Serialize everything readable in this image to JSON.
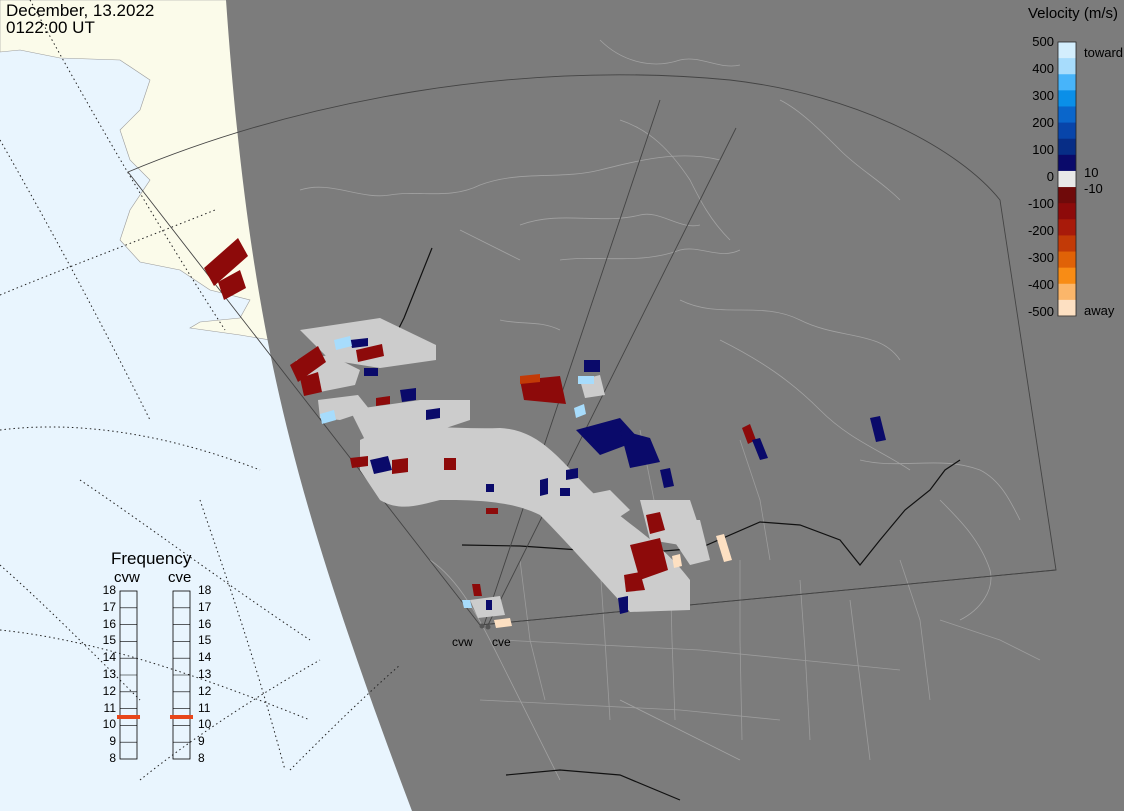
{
  "header": {
    "date": "December, 13.2022",
    "time": "0122:00 UT"
  },
  "colorbar": {
    "title": "Velocity (m/s)",
    "ticks": [
      "500",
      "400",
      "300",
      "200",
      "100",
      "0",
      "-100",
      "-200",
      "-300",
      "-400",
      "-500"
    ],
    "side_labels": {
      "toward": "toward",
      "away": "away",
      "pos_threshold": "10",
      "neg_threshold": "-10"
    },
    "colors": [
      "#d3eefd",
      "#a7dcfc",
      "#47b4fa",
      "#0a8fe8",
      "#0a66cb",
      "#0845aa",
      "#072d86",
      "#0a0a6a",
      "#e8e8e8",
      "#6f0a0a",
      "#8d0a0a",
      "#a81a0a",
      "#c23a07",
      "#e06207",
      "#f88c15",
      "#fbb66a",
      "#fde0c2"
    ]
  },
  "frequency": {
    "title": "Frequency",
    "radars": [
      {
        "name": "cvw",
        "value_mhz": 10.5
      },
      {
        "name": "cve",
        "value_mhz": 10.5
      }
    ],
    "scale": [
      "18",
      "17",
      "16",
      "15",
      "14",
      "13",
      "12",
      "11",
      "10",
      "9",
      "8"
    ],
    "marker_color": "#e8461a"
  },
  "radar_labels": {
    "cvw": "cvw",
    "cve": "cve"
  },
  "map_colors": {
    "ocean": "#e9f5fe",
    "land_day": "#fbfbea",
    "night": "#7c7c7c",
    "gate_empty": "#cccccc"
  }
}
